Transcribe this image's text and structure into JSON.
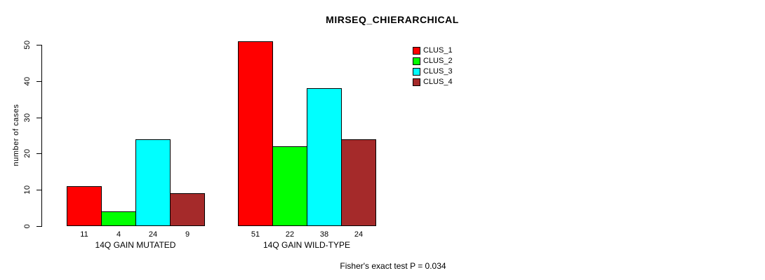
{
  "chart_data": {
    "type": "bar",
    "title": "MIRSEQ_CHIERARCHICAL",
    "xlabel": "",
    "ylabel": "number of cases",
    "ylim": [
      0,
      50
    ],
    "y_ticks": [
      0,
      10,
      20,
      30,
      40,
      50
    ],
    "grid": false,
    "legend_position": "top-right",
    "categories": [
      "14Q GAIN MUTATED",
      "14Q GAIN WILD-TYPE"
    ],
    "series": [
      {
        "name": "CLUS_1",
        "color": "#FF0000",
        "values": [
          11,
          51
        ]
      },
      {
        "name": "CLUS_2",
        "color": "#00FF00",
        "values": [
          4,
          22
        ]
      },
      {
        "name": "CLUS_3",
        "color": "#00FFFF",
        "values": [
          24,
          38
        ]
      },
      {
        "name": "CLUS_4",
        "color": "#A52A2A",
        "values": [
          9,
          24
        ]
      }
    ],
    "bar_value_labels": [
      [
        11,
        4,
        24,
        9
      ],
      [
        51,
        22,
        38,
        24
      ]
    ],
    "annotation": "Fisher's exact test P = 0.034"
  }
}
